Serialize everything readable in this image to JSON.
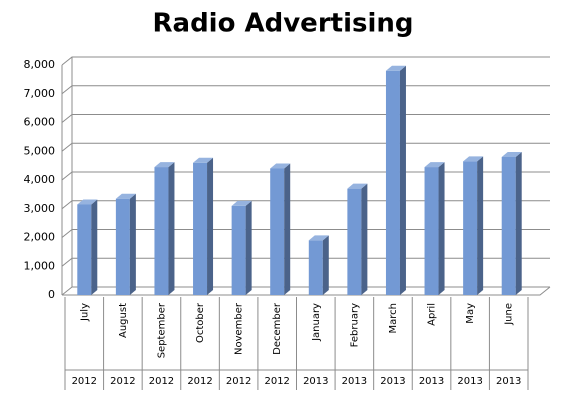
{
  "chart_data": {
    "type": "bar",
    "title": "Radio Advertising",
    "categories": [
      "July",
      "August",
      "September",
      "October",
      "November",
      "December",
      "January",
      "February",
      "March",
      "April",
      "May",
      "June"
    ],
    "year_labels": [
      "2012",
      "2012",
      "2012",
      "2012",
      "2012",
      "2012",
      "2013",
      "2013",
      "2013",
      "2013",
      "2013",
      "2013"
    ],
    "values": [
      3150,
      3350,
      4450,
      4600,
      3100,
      4400,
      1900,
      3700,
      7800,
      4450,
      4650,
      4800
    ],
    "color": "#7399d4",
    "ylim": [
      0,
      8000
    ],
    "yticks": [
      0,
      {
        "value": 1000,
        "label": "1,000"
      },
      {
        "value": 2000,
        "label": "2,000"
      },
      {
        "value": 3000,
        "label": "3,000"
      },
      {
        "value": 4000,
        "label": "4,000"
      },
      {
        "value": 5000,
        "label": "5,000"
      },
      {
        "value": 6000,
        "label": "6,000"
      },
      {
        "value": 7000,
        "label": "7,000"
      },
      {
        "value": 8000,
        "label": "8,000"
      }
    ],
    "grid": true
  }
}
